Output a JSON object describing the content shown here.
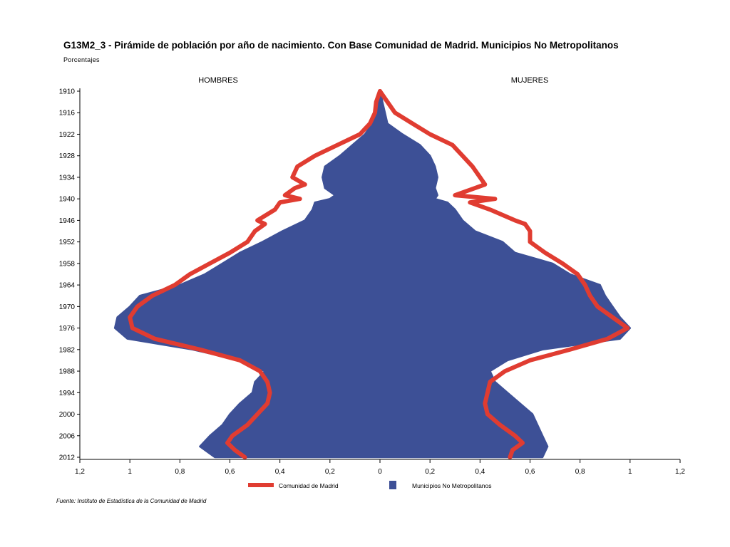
{
  "title": "G13M2_3 - Pirámide de población por año de nacimiento. Con Base Comunidad de Madrid.  Municipios No Metropolitanos",
  "subtitle": "Porcentajes",
  "source": "Fuente: Instituto de Estadística de la Comunidad de Madrid",
  "colors": {
    "series_line": "#e03c31",
    "series_area": "#3d5096"
  },
  "chart_data": {
    "type": "area",
    "layout": "population-pyramid",
    "side_labels": {
      "left": "HOMBRES",
      "right": "MUJERES"
    },
    "y_ticks": [
      "1910",
      "1916",
      "1922",
      "1928",
      "1934",
      "1940",
      "1946",
      "1952",
      "1958",
      "1964",
      "1970",
      "1976",
      "1982",
      "1988",
      "1994",
      "2000",
      "2006",
      "2012"
    ],
    "x_ticks": [
      "1,2",
      "1",
      "0,8",
      "0,6",
      "0,4",
      "0,2",
      "0",
      "0,2",
      "0,4",
      "0,6",
      "0,8",
      "1",
      "1,2"
    ],
    "xlim": [
      -1.2,
      1.2
    ],
    "ylim": [
      1910,
      2012
    ],
    "legend": {
      "position": "bottom",
      "items": [
        "Comunidad de Madrid",
        "Municipios No Metropolitanos"
      ]
    },
    "series": [
      {
        "name": "Municipios No Metropolitanos",
        "type": "area",
        "years": [
          1910,
          1913,
          1916,
          1919,
          1922,
          1925,
          1928,
          1931,
          1934,
          1937,
          1939,
          1940,
          1941,
          1943,
          1946,
          1949,
          1952,
          1955,
          1958,
          1961,
          1964,
          1967,
          1970,
          1973,
          1976,
          1979,
          1982,
          1985,
          1988,
          1991,
          1994,
          1997,
          2000,
          2003,
          2006,
          2009,
          2012
        ],
        "hombres": [
          0.002,
          0.015,
          0.02,
          0.03,
          0.06,
          0.11,
          0.16,
          0.22,
          0.23,
          0.22,
          0.18,
          0.2,
          0.26,
          0.27,
          0.3,
          0.39,
          0.47,
          0.56,
          0.63,
          0.7,
          0.8,
          0.96,
          1.0,
          1.05,
          1.06,
          1.01,
          0.75,
          0.56,
          0.46,
          0.5,
          0.51,
          0.56,
          0.6,
          0.63,
          0.68,
          0.72,
          0.66
        ],
        "mujeres": [
          0.002,
          0.01,
          0.02,
          0.03,
          0.09,
          0.16,
          0.2,
          0.22,
          0.23,
          0.22,
          0.23,
          0.22,
          0.27,
          0.3,
          0.33,
          0.38,
          0.49,
          0.54,
          0.69,
          0.76,
          0.88,
          0.9,
          0.93,
          0.96,
          1.0,
          0.96,
          0.65,
          0.51,
          0.44,
          0.46,
          0.51,
          0.56,
          0.61,
          0.63,
          0.65,
          0.67,
          0.65
        ]
      },
      {
        "name": "Comunidad de Madrid",
        "type": "line",
        "years": [
          1910,
          1913,
          1916,
          1919,
          1922,
          1925,
          1928,
          1931,
          1934,
          1936,
          1937,
          1939,
          1940,
          1941,
          1943,
          1946,
          1947,
          1949,
          1952,
          1955,
          1958,
          1961,
          1964,
          1967,
          1970,
          1973,
          1976,
          1979,
          1982,
          1985,
          1988,
          1991,
          1994,
          1997,
          2000,
          2003,
          2006,
          2008,
          2010,
          2012
        ],
        "hombres": [
          0.0,
          0.015,
          0.02,
          0.04,
          0.08,
          0.17,
          0.26,
          0.33,
          0.35,
          0.3,
          0.34,
          0.38,
          0.32,
          0.4,
          0.42,
          0.49,
          0.46,
          0.5,
          0.53,
          0.6,
          0.68,
          0.76,
          0.82,
          0.91,
          0.97,
          1.0,
          0.99,
          0.9,
          0.72,
          0.56,
          0.48,
          0.45,
          0.44,
          0.45,
          0.49,
          0.53,
          0.59,
          0.61,
          0.58,
          0.54
        ],
        "mujeres": [
          0.0,
          0.03,
          0.06,
          0.13,
          0.2,
          0.29,
          0.33,
          0.37,
          0.4,
          0.42,
          0.38,
          0.3,
          0.46,
          0.36,
          0.44,
          0.54,
          0.58,
          0.6,
          0.6,
          0.66,
          0.73,
          0.79,
          0.82,
          0.84,
          0.87,
          0.93,
          0.99,
          0.91,
          0.76,
          0.6,
          0.5,
          0.44,
          0.43,
          0.42,
          0.43,
          0.48,
          0.54,
          0.57,
          0.53,
          0.52
        ]
      }
    ]
  }
}
